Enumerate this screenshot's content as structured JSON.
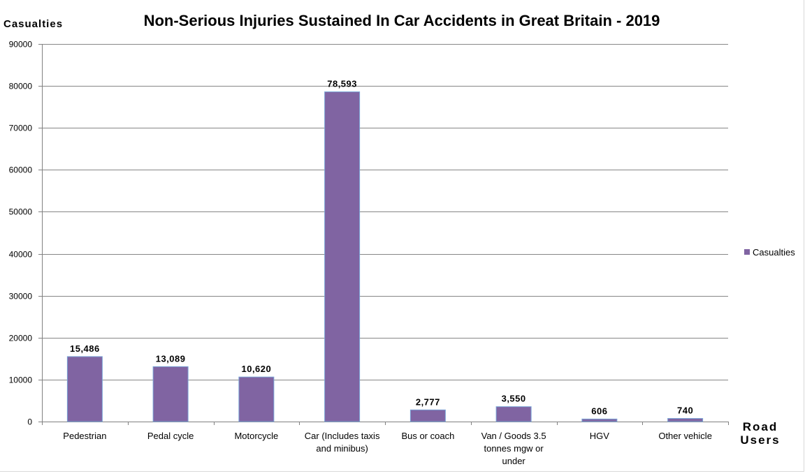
{
  "chart_data": {
    "type": "bar",
    "title": "Non-Serious Injuries Sustained In Car Accidents in Great Britain - 2019",
    "ylabel": "Casualties",
    "xlabel_lines": [
      "Road",
      "Users"
    ],
    "ylim": [
      0,
      90000
    ],
    "yticks": [
      "0",
      "10000",
      "20000",
      "30000",
      "40000",
      "50000",
      "60000",
      "70000",
      "80000",
      "90000"
    ],
    "grid": true,
    "legend": {
      "position": "right",
      "entries": [
        "Casualties"
      ]
    },
    "categories": [
      [
        "Pedestrian"
      ],
      [
        "Pedal cycle"
      ],
      [
        "Motorcycle"
      ],
      [
        "Car (Includes taxis",
        "and minibus)"
      ],
      [
        "Bus or coach"
      ],
      [
        "Van / Goods 3.5",
        "tonnes mgw or",
        "under"
      ],
      [
        "HGV"
      ],
      [
        "Other vehicle"
      ]
    ],
    "series": [
      {
        "name": "Casualties",
        "color": "#8064a2",
        "values": [
          15486,
          13089,
          10620,
          78593,
          2777,
          3550,
          606,
          740
        ],
        "data_labels": [
          "15,486",
          "13,089",
          "10,620",
          "78,593",
          "2,777",
          "3,550",
          "606",
          "740"
        ]
      }
    ]
  }
}
